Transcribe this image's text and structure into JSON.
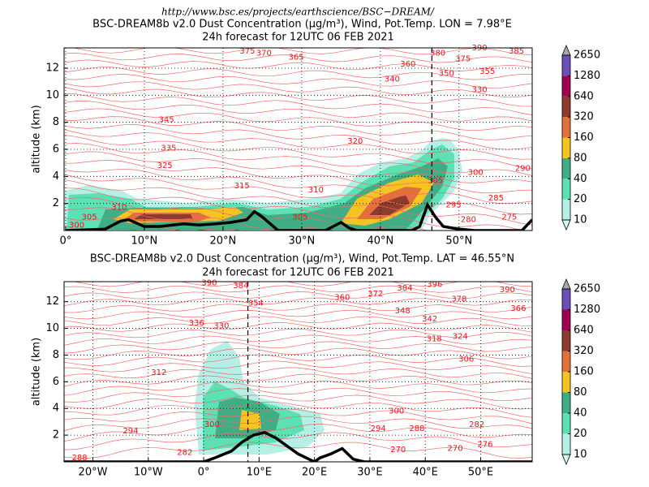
{
  "header": {
    "url": "http://www.bsc.es/projects/earthscience/BSC−DREAM/"
  },
  "chart_data": [
    {
      "type": "contour",
      "title": "BSC-DREAM8b v2.0 Dust Concentration (µg/m³), Wind, Pot.Temp. LON = 7.98°E",
      "subtitle": "24h forecast for 12UTC 06 FEB 2021",
      "ylabel": "altitude (km)",
      "xlim": [
        -0.2,
        59.3
      ],
      "ylim": [
        0,
        13.5
      ],
      "xticks": [
        {
          "value": 0,
          "label": "0°"
        },
        {
          "value": 10,
          "label": "10°N"
        },
        {
          "value": 20,
          "label": "20°N"
        },
        {
          "value": 30,
          "label": "30°N"
        },
        {
          "value": 40,
          "label": "40°N"
        },
        {
          "value": 50,
          "label": "50°N"
        }
      ],
      "yticks": [
        2,
        4,
        6,
        8,
        10,
        12
      ],
      "grid": true,
      "section_marker": 46.55,
      "levels": [
        10,
        20,
        40,
        80,
        160,
        320,
        640,
        1280,
        2650
      ],
      "colors": [
        "#b4f0e6",
        "#5ce0b4",
        "#3fae84",
        "#f6c324",
        "#e2703a",
        "#8c3b2c",
        "#a0004f",
        "#6a4fb5"
      ],
      "extend_colors": [
        "#d6f8f3",
        "#a8a8a8"
      ],
      "terrain": {
        "x": [
          0,
          5,
          7,
          8,
          10,
          12,
          15,
          17,
          19,
          21,
          23,
          24,
          25,
          26,
          27,
          33,
          34,
          35,
          36,
          37,
          44,
          45,
          46,
          47,
          48,
          50,
          52,
          58,
          59.3
        ],
        "values": [
          0,
          0.1,
          0.7,
          0.8,
          0.3,
          0.3,
          0.5,
          0.4,
          0.5,
          0.6,
          0.8,
          1.4,
          1.0,
          0.5,
          0,
          0,
          0.3,
          0.6,
          0.2,
          0,
          0,
          0.3,
          1.9,
          1.0,
          0.3,
          0.1,
          0,
          0,
          0.8
        ]
      },
      "contour_labels": [
        {
          "x": 23.1,
          "y": 13.25,
          "value": 375
        },
        {
          "x": 25.2,
          "y": 13.1,
          "value": 370
        },
        {
          "x": 29.3,
          "y": 12.8,
          "value": 365
        },
        {
          "x": 43.5,
          "y": 12.3,
          "value": 360
        },
        {
          "x": 47.3,
          "y": 13.1,
          "value": 380
        },
        {
          "x": 50.5,
          "y": 12.7,
          "value": 375
        },
        {
          "x": 52.6,
          "y": 13.5,
          "value": 390
        },
        {
          "x": 57.3,
          "y": 13.25,
          "value": 385
        },
        {
          "x": 53.6,
          "y": 11.75,
          "value": 355
        },
        {
          "x": 48.4,
          "y": 11.6,
          "value": 350
        },
        {
          "x": 41.5,
          "y": 11.2,
          "value": 340
        },
        {
          "x": 52.6,
          "y": 10.4,
          "value": 330
        },
        {
          "x": 12.8,
          "y": 8.2,
          "value": 345
        },
        {
          "x": 36.8,
          "y": 6.6,
          "value": 320
        },
        {
          "x": 13.1,
          "y": 6.1,
          "value": 335
        },
        {
          "x": 12.6,
          "y": 4.8,
          "value": 325
        },
        {
          "x": 52.1,
          "y": 4.3,
          "value": 300
        },
        {
          "x": 58.1,
          "y": 4.6,
          "value": 290
        },
        {
          "x": 47.0,
          "y": 3.7,
          "value": 305
        },
        {
          "x": 22.4,
          "y": 3.3,
          "value": 315
        },
        {
          "x": 31.8,
          "y": 3.0,
          "value": 310
        },
        {
          "x": 54.7,
          "y": 2.4,
          "value": 285
        },
        {
          "x": 49.3,
          "y": 1.9,
          "value": 295
        },
        {
          "x": 6.8,
          "y": 1.7,
          "value": 310
        },
        {
          "x": 3.0,
          "y": 1.0,
          "value": 305
        },
        {
          "x": 29.8,
          "y": 1.0,
          "value": 305
        },
        {
          "x": 51.2,
          "y": 0.8,
          "value": 280
        },
        {
          "x": 56.4,
          "y": 1.0,
          "value": 275
        },
        {
          "x": 1.4,
          "y": 0.4,
          "value": 300
        }
      ]
    },
    {
      "type": "contour",
      "title": "BSC-DREAM8b v2.0 Dust Concentration (µg/m³), Wind, Pot.Temp. LAT = 46.55°N",
      "subtitle": "24h forecast for 12UTC 06 FEB 2021",
      "ylabel": "altitude (km)",
      "xlim": [
        -25.2,
        59.3
      ],
      "ylim": [
        0,
        13.5
      ],
      "xticks": [
        {
          "value": -20,
          "label": "20°W"
        },
        {
          "value": -10,
          "label": "10°W"
        },
        {
          "value": 0,
          "label": "0°"
        },
        {
          "value": 10,
          "label": "10°E"
        },
        {
          "value": 20,
          "label": "20°E"
        },
        {
          "value": 30,
          "label": "30°E"
        },
        {
          "value": 40,
          "label": "40°E"
        },
        {
          "value": 50,
          "label": "50°E"
        }
      ],
      "yticks": [
        2,
        4,
        6,
        8,
        10,
        12
      ],
      "grid": true,
      "section_marker": 7.98,
      "levels": [
        10,
        20,
        40,
        80,
        160,
        320,
        640,
        1280,
        2650
      ],
      "colors": [
        "#b4f0e6",
        "#5ce0b4",
        "#3fae84",
        "#f6c324",
        "#e2703a",
        "#8c3b2c",
        "#a0004f",
        "#6a4fb5"
      ],
      "extend_colors": [
        "#d6f8f3",
        "#a8a8a8"
      ],
      "terrain": {
        "x": [
          -25.2,
          0,
          2,
          5,
          7,
          9,
          11,
          13,
          15,
          17,
          19,
          20,
          21,
          23,
          25,
          26,
          27,
          29,
          59.3
        ],
        "values": [
          0,
          0,
          0.3,
          0.8,
          1.5,
          2.0,
          2.2,
          1.8,
          1.2,
          0.6,
          0.2,
          0,
          0.3,
          0.6,
          1.0,
          0.6,
          0.2,
          0,
          0
        ]
      },
      "contour_labels": [
        {
          "x": 1.0,
          "y": 13.4,
          "value": 390
        },
        {
          "x": 6.7,
          "y": 13.2,
          "value": 384
        },
        {
          "x": 41.7,
          "y": 13.3,
          "value": 396
        },
        {
          "x": 36.3,
          "y": 13.0,
          "value": 384
        },
        {
          "x": 54.8,
          "y": 12.9,
          "value": 390
        },
        {
          "x": 9.4,
          "y": 11.9,
          "value": 354
        },
        {
          "x": 25.0,
          "y": 12.3,
          "value": 360
        },
        {
          "x": 31.0,
          "y": 12.6,
          "value": 372
        },
        {
          "x": 46.1,
          "y": 12.2,
          "value": 378
        },
        {
          "x": 56.8,
          "y": 11.5,
          "value": 366
        },
        {
          "x": 35.9,
          "y": 11.3,
          "value": 348
        },
        {
          "x": 40.8,
          "y": 10.7,
          "value": 342
        },
        {
          "x": -1.3,
          "y": 10.4,
          "value": 336
        },
        {
          "x": 3.2,
          "y": 10.2,
          "value": 330
        },
        {
          "x": 41.6,
          "y": 9.2,
          "value": 318
        },
        {
          "x": 46.3,
          "y": 9.4,
          "value": 324
        },
        {
          "x": 47.4,
          "y": 7.7,
          "value": 306
        },
        {
          "x": -8.1,
          "y": 6.7,
          "value": 312
        },
        {
          "x": 1.5,
          "y": 2.8,
          "value": 300
        },
        {
          "x": 34.8,
          "y": 3.8,
          "value": 300
        },
        {
          "x": -13.2,
          "y": 2.3,
          "value": 294
        },
        {
          "x": 31.5,
          "y": 2.5,
          "value": 294
        },
        {
          "x": 38.5,
          "y": 2.5,
          "value": 288
        },
        {
          "x": 49.3,
          "y": 2.8,
          "value": 282
        },
        {
          "x": -3.4,
          "y": 0.7,
          "value": 282
        },
        {
          "x": 50.8,
          "y": 1.3,
          "value": 276
        },
        {
          "x": 35.1,
          "y": 0.9,
          "value": 270
        },
        {
          "x": 45.4,
          "y": 1.0,
          "value": 270
        },
        {
          "x": -22.4,
          "y": 0.3,
          "value": 288
        }
      ]
    }
  ]
}
